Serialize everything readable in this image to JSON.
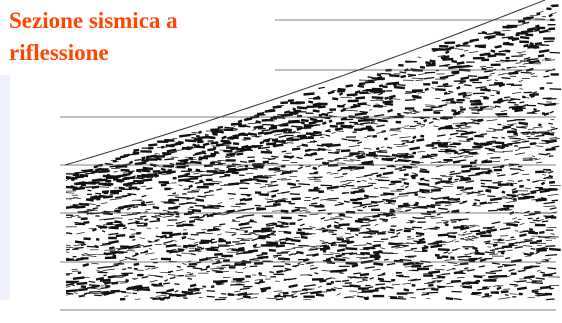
{
  "title": [
    "Sezione sismica a",
    "riflessione"
  ]
}
